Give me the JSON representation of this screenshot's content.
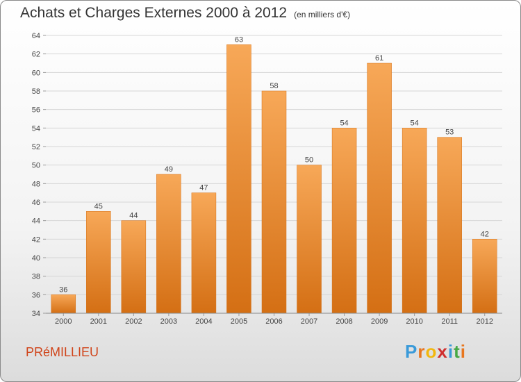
{
  "title": {
    "main": "Achats et Charges Externes 2000 à 2012",
    "unit": "(en milliers d'€)"
  },
  "commune": "PRéMILLIEU",
  "logo": {
    "letters": [
      "P",
      "r",
      "o",
      "x",
      "i",
      "t",
      "i"
    ],
    "colors": [
      "#3a9ad9",
      "#e8761e",
      "#f2b70f",
      "#cf2f2f",
      "#3a9ad9",
      "#46a845",
      "#e8761e"
    ]
  },
  "colors": {
    "bar": "#f0922e",
    "bar_light": "#f7a858",
    "bar_dark": "#d46f14",
    "grid": "#d6d6d6",
    "commune": "#d0451b"
  },
  "chart_data": {
    "type": "bar",
    "categories": [
      "2000",
      "2001",
      "2002",
      "2003",
      "2004",
      "2005",
      "2006",
      "2007",
      "2008",
      "2009",
      "2010",
      "2011",
      "2012"
    ],
    "values": [
      36,
      45,
      44,
      49,
      47,
      63,
      58,
      50,
      54,
      61,
      54,
      53,
      42
    ],
    "ylim": [
      34,
      64
    ],
    "yticks": [
      34,
      36,
      38,
      40,
      42,
      44,
      46,
      48,
      50,
      52,
      54,
      56,
      58,
      60,
      62,
      64
    ],
    "grid": true,
    "xlabel": "",
    "ylabel": ""
  }
}
